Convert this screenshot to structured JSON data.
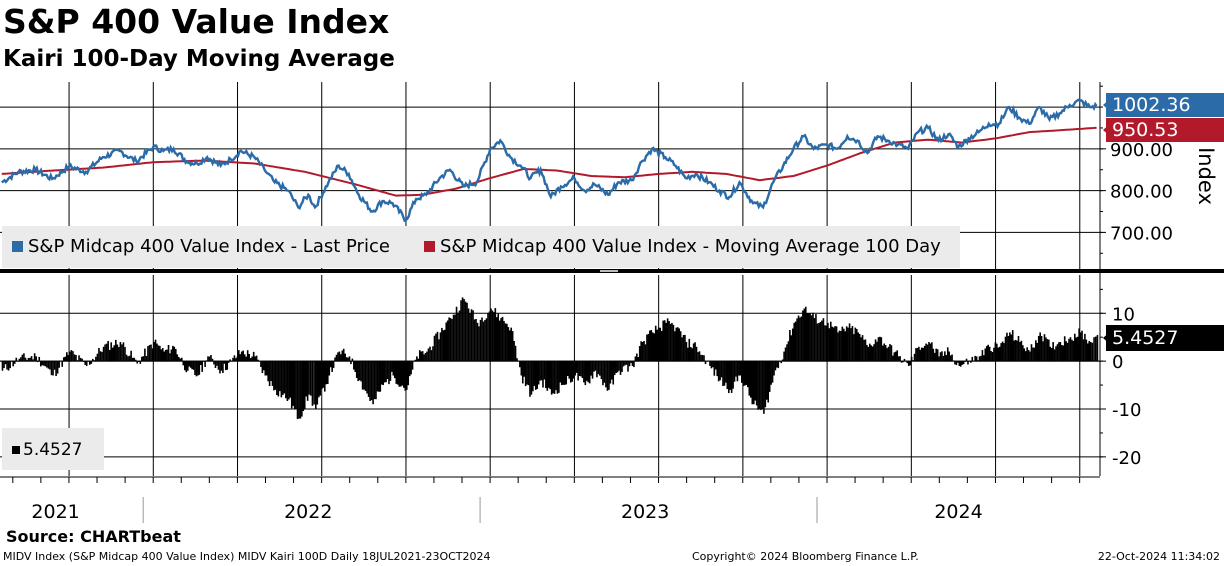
{
  "header": {
    "title": "S&P 400 Value Index",
    "subtitle": "Kairi 100-Day Moving Average"
  },
  "colors": {
    "price": "#2b6ba8",
    "moving_average": "#b21a2b",
    "kairi": "#000000",
    "legend_bg": "#ebebeb"
  },
  "legend": {
    "price_label": "S&P Midcap 400 Value Index - Last Price",
    "ma_label": "S&P Midcap 400 Value Index - Moving Average 100 Day",
    "kairi_label": "5.4527"
  },
  "tags": {
    "last_price": "1002.36",
    "moving_average": "950.53",
    "kairi": "5.4527"
  },
  "chart_data": [
    {
      "type": "line",
      "title": "S&P 400 Value Index",
      "ylabel": "Index",
      "ylim": [
        610,
        1060
      ],
      "yticks": [
        700,
        800,
        900
      ],
      "ytick_labels": [
        "700.00",
        "800.00",
        "900.00"
      ],
      "xlim": [
        2021.545,
        2024.81
      ],
      "x_year_labels": [
        "2021",
        "2022",
        "2023",
        "2024"
      ],
      "grid": true,
      "series": [
        {
          "name": "S&P Midcap 400 Value Index - Last Price",
          "x": [
            2021.55,
            2021.6,
            2021.65,
            2021.7,
            2021.75,
            2021.8,
            2021.85,
            2021.9,
            2021.95,
            2022.0,
            2022.03,
            2022.06,
            2022.1,
            2022.13,
            2022.16,
            2022.2,
            2022.23,
            2022.26,
            2022.3,
            2022.33,
            2022.36,
            2022.4,
            2022.43,
            2022.46,
            2022.48,
            2022.52,
            2022.55,
            2022.58,
            2022.61,
            2022.65,
            2022.68,
            2022.71,
            2022.75,
            2022.78,
            2022.81,
            2022.85,
            2022.88,
            2022.92,
            2022.96,
            2023.0,
            2023.03,
            2023.06,
            2023.09,
            2023.12,
            2023.15,
            2023.18,
            2023.21,
            2023.25,
            2023.28,
            2023.31,
            2023.35,
            2023.38,
            2023.42,
            2023.45,
            2023.48,
            2023.52,
            2023.55,
            2023.58,
            2023.61,
            2023.65,
            2023.68,
            2023.71,
            2023.74,
            2023.78,
            2023.81,
            2023.84,
            2023.87,
            2023.9,
            2023.93,
            2023.96,
            2024.0,
            2024.03,
            2024.06,
            2024.09,
            2024.12,
            2024.15,
            2024.18,
            2024.21,
            2024.24,
            2024.27,
            2024.3,
            2024.33,
            2024.36,
            2024.39,
            2024.42,
            2024.45,
            2024.48,
            2024.51,
            2024.54,
            2024.57,
            2024.6,
            2024.63,
            2024.66,
            2024.69,
            2024.72,
            2024.75,
            2024.78,
            2024.8
          ],
          "values": [
            820,
            845,
            850,
            828,
            858,
            845,
            880,
            895,
            870,
            905,
            895,
            900,
            870,
            865,
            880,
            860,
            875,
            895,
            880,
            850,
            820,
            800,
            760,
            790,
            760,
            820,
            860,
            840,
            790,
            750,
            775,
            770,
            730,
            780,
            790,
            830,
            850,
            810,
            820,
            900,
            920,
            880,
            860,
            830,
            850,
            785,
            810,
            830,
            800,
            815,
            790,
            820,
            825,
            870,
            900,
            880,
            860,
            830,
            840,
            820,
            800,
            785,
            820,
            770,
            760,
            820,
            860,
            900,
            930,
            900,
            910,
            900,
            930,
            920,
            890,
            930,
            920,
            910,
            900,
            940,
            950,
            920,
            935,
            905,
            925,
            940,
            960,
            960,
            1000,
            975,
            960,
            1000,
            970,
            985,
            1005,
            1015,
            1000,
            1002.36
          ]
        },
        {
          "name": "S&P Midcap 400 Value Index - Moving Average 100 Day",
          "x": [
            2021.55,
            2021.7,
            2021.85,
            2022.0,
            2022.15,
            2022.3,
            2022.45,
            2022.6,
            2022.72,
            2022.8,
            2022.9,
            2023.0,
            2023.1,
            2023.2,
            2023.3,
            2023.4,
            2023.5,
            2023.6,
            2023.7,
            2023.8,
            2023.9,
            2024.0,
            2024.1,
            2024.2,
            2024.3,
            2024.4,
            2024.5,
            2024.6,
            2024.7,
            2024.8
          ],
          "values": [
            840,
            848,
            855,
            868,
            872,
            865,
            845,
            815,
            788,
            790,
            805,
            830,
            852,
            848,
            835,
            832,
            840,
            845,
            840,
            825,
            835,
            860,
            890,
            915,
            922,
            915,
            925,
            940,
            945,
            950.53
          ]
        }
      ]
    },
    {
      "type": "bar",
      "title": "Kairi 100-Day Moving Average",
      "ylim": [
        -24,
        18
      ],
      "yticks": [
        -20,
        -10,
        0,
        10
      ],
      "ytick_labels": [
        "-20",
        "-10",
        "0",
        "10"
      ],
      "xlim": [
        2021.545,
        2024.81
      ],
      "grid": true,
      "series": [
        {
          "name": "Kairi 100D",
          "x": [
            2021.55,
            2021.6,
            2021.65,
            2021.7,
            2021.75,
            2021.8,
            2021.85,
            2021.9,
            2021.95,
            2022.0,
            2022.03,
            2022.06,
            2022.1,
            2022.13,
            2022.16,
            2022.2,
            2022.23,
            2022.26,
            2022.3,
            2022.33,
            2022.36,
            2022.4,
            2022.43,
            2022.46,
            2022.48,
            2022.52,
            2022.55,
            2022.58,
            2022.61,
            2022.65,
            2022.68,
            2022.71,
            2022.75,
            2022.78,
            2022.81,
            2022.85,
            2022.88,
            2022.92,
            2022.96,
            2023.0,
            2023.03,
            2023.06,
            2023.09,
            2023.12,
            2023.15,
            2023.18,
            2023.21,
            2023.25,
            2023.28,
            2023.31,
            2023.35,
            2023.38,
            2023.42,
            2023.45,
            2023.48,
            2023.52,
            2023.55,
            2023.58,
            2023.61,
            2023.65,
            2023.68,
            2023.71,
            2023.74,
            2023.78,
            2023.81,
            2023.84,
            2023.87,
            2023.9,
            2023.93,
            2023.96,
            2024.0,
            2024.03,
            2024.06,
            2024.09,
            2024.12,
            2024.15,
            2024.18,
            2024.21,
            2024.24,
            2024.27,
            2024.3,
            2024.33,
            2024.36,
            2024.39,
            2024.42,
            2024.45,
            2024.48,
            2024.51,
            2024.54,
            2024.57,
            2024.6,
            2024.63,
            2024.66,
            2024.69,
            2024.72,
            2024.75,
            2024.78,
            2024.8
          ],
          "values": [
            -2,
            0.5,
            1,
            -3,
            2,
            -1,
            3,
            4,
            -0.5,
            4,
            2,
            3,
            -2,
            -3,
            1,
            -2,
            0,
            2,
            1,
            -3,
            -6,
            -8,
            -12,
            -7,
            -10,
            -3,
            2,
            1,
            -4,
            -9,
            -5,
            -3,
            -6,
            1,
            2,
            6,
            9,
            13,
            8,
            11,
            9,
            7,
            -3,
            -7,
            -4,
            -7,
            -5,
            -3,
            -5,
            -2,
            -6,
            -2,
            -1,
            4,
            6,
            8,
            7,
            4,
            3,
            -1,
            -4,
            -6,
            -3,
            -9,
            -11,
            -3,
            2,
            8,
            11,
            9,
            8,
            6,
            7,
            6,
            3,
            5,
            3,
            1,
            -1,
            3,
            4,
            1,
            2,
            -1,
            0,
            1,
            3,
            3,
            6,
            4,
            2,
            6,
            3,
            4,
            5,
            6,
            4,
            5.4527
          ]
        }
      ]
    }
  ],
  "footer": {
    "source": "Source: CHARTbeat",
    "ticker_info": "MIDV Index (S&P Midcap 400 Value Index) MIDV Kairi 100D  Daily 18JUL2021-23OCT2024",
    "copyright": "Copyright© 2024 Bloomberg Finance L.P.",
    "timestamp": "22-Oct-2024 11:34:02"
  }
}
